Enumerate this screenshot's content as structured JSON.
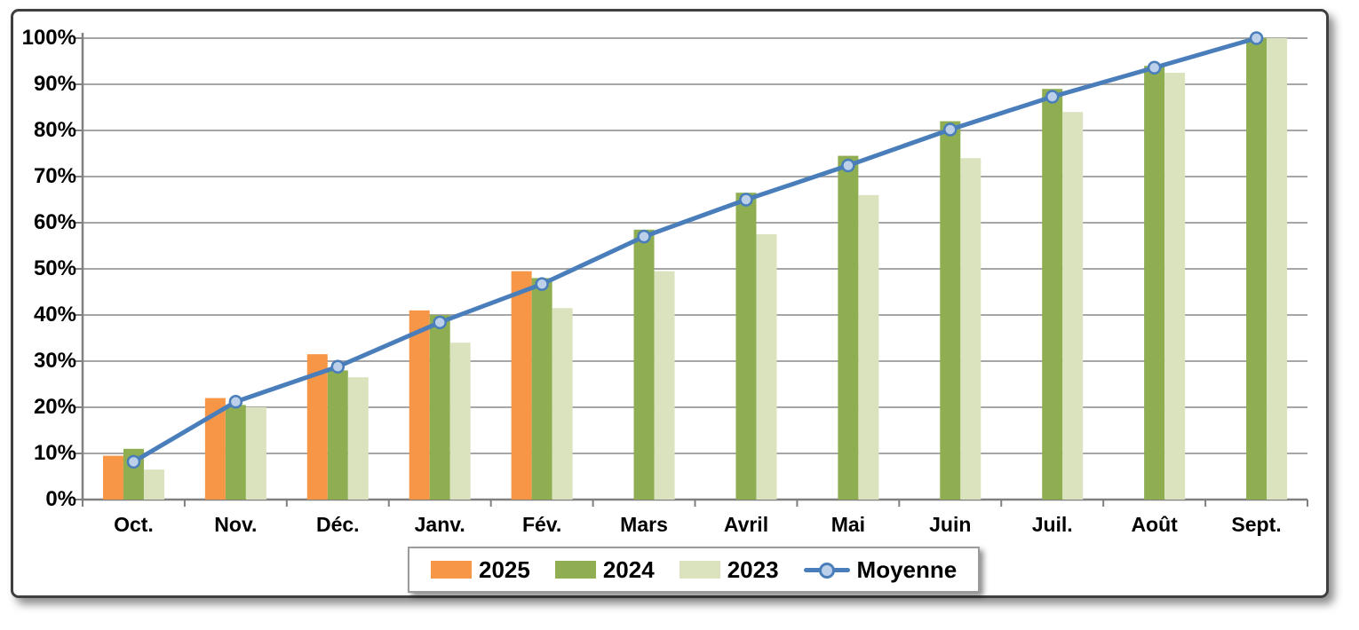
{
  "chart_data": {
    "type": "bar",
    "title": "",
    "categories": [
      "Oct.",
      "Nov.",
      "Déc.",
      "Janv.",
      "Fév.",
      "Mars",
      "Avril",
      "Mai",
      "Juin",
      "Juil.",
      "Août",
      "Sept."
    ],
    "series": [
      {
        "name": "2025",
        "type": "bar",
        "color": "#F79646",
        "values": [
          9.5,
          22,
          31.5,
          41,
          49.5,
          null,
          null,
          null,
          null,
          null,
          null,
          null
        ]
      },
      {
        "name": "2024",
        "type": "bar",
        "color": "#8EAE51",
        "values": [
          11,
          20.5,
          28,
          40,
          48,
          58.5,
          66.5,
          74.5,
          82,
          89,
          94,
          100
        ]
      },
      {
        "name": "2023",
        "type": "bar",
        "color": "#DAE3BE",
        "values": [
          6.5,
          20,
          26.5,
          34,
          41.5,
          49.5,
          57.5,
          66,
          74,
          84,
          92.5,
          100
        ]
      },
      {
        "name": "Moyenne",
        "type": "line",
        "color": "#4A7EBB",
        "marker_fill": "#BCD0E9",
        "values": [
          8.2,
          21.2,
          28.8,
          38.4,
          46.7,
          57,
          65,
          72.4,
          80.2,
          87.3,
          93.6,
          100
        ]
      }
    ],
    "xlabel": "",
    "ylabel": "",
    "ylim": [
      0,
      100
    ],
    "ytick_step": 10,
    "ytick_labels": [
      "0%",
      "10%",
      "20%",
      "30%",
      "40%",
      "50%",
      "60%",
      "70%",
      "80%",
      "90%",
      "100%"
    ],
    "grid": true,
    "gridline_color": "#A6A6A6",
    "axis_color": "#808080",
    "legend_position": "bottom"
  }
}
